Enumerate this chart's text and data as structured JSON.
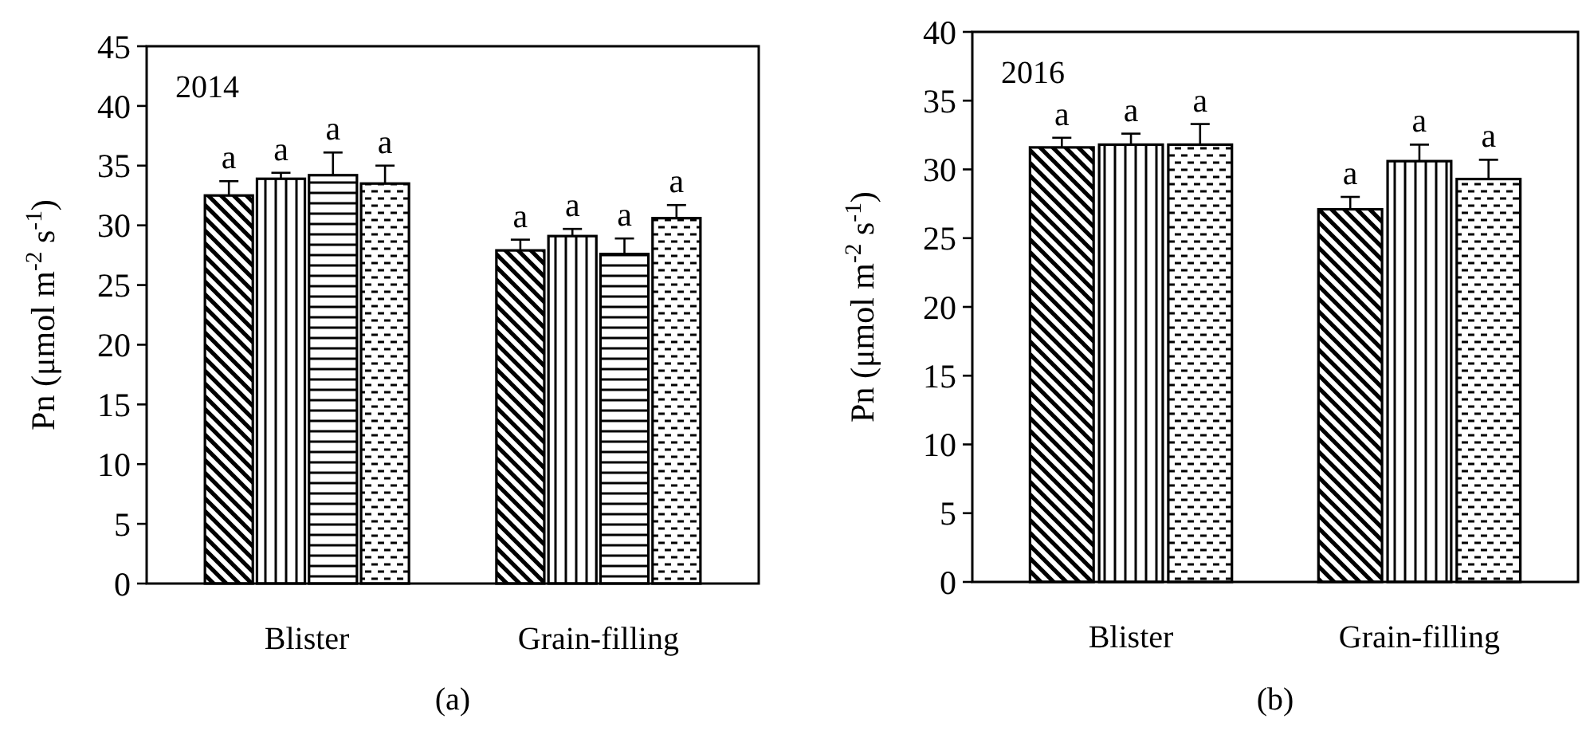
{
  "chart_data": [
    {
      "type": "bar",
      "categories": [
        "Blister",
        "Grain-filling"
      ],
      "ylabel": "Pn (μmol m$^{-2}$ s$^{-1}$)",
      "ylim": [
        0,
        45
      ],
      "yticks": [
        0,
        5,
        10,
        15,
        20,
        25,
        30,
        35,
        40,
        45
      ],
      "grid": false,
      "series": [
        {
          "color": "#000000",
          "values": [
            32.5,
            27.9
          ],
          "errors": [
            [
              32.5,
              33.7
            ],
            [
              27.9,
              28.8
            ]
          ]
        },
        {
          "color": "#000000",
          "values": [
            33.9,
            29.1
          ],
          "errors": [
            [
              33.9,
              34.4
            ],
            [
              29.1,
              29.7
            ]
          ]
        },
        {
          "color": "#000000",
          "values": [
            34.2,
            27.6
          ],
          "errors": [
            [
              34.2,
              36.1
            ],
            [
              27.6,
              28.9
            ]
          ]
        },
        {
          "color": "#000000",
          "values": [
            33.5,
            30.6
          ],
          "errors": [
            [
              33.5,
              35.0
            ],
            [
              30.6,
              31.7
            ]
          ]
        }
      ],
      "annotations": [
        "2014",
        "(a)",
        "a",
        "a",
        "a",
        "a",
        "a",
        "a",
        "a",
        "a"
      ]
    },
    {
      "type": "bar",
      "categories": [
        "Blister",
        "Grain-filling"
      ],
      "ylabel": "Pn (μmol m$^{-2}$ s$^{-1}$)",
      "ylim": [
        0,
        40
      ],
      "yticks": [
        0,
        5,
        10,
        15,
        20,
        25,
        30,
        35,
        40
      ],
      "grid": false,
      "series": [
        {
          "color": "#000000",
          "values": [
            31.6,
            27.1
          ],
          "errors": [
            [
              31.6,
              32.3
            ],
            [
              27.1,
              28.0
            ]
          ]
        },
        {
          "color": "#000000",
          "values": [
            31.8,
            30.6
          ],
          "errors": [
            [
              31.8,
              32.6
            ],
            [
              30.6,
              31.8
            ]
          ]
        },
        {
          "color": "#000000",
          "values": [
            31.8,
            29.3
          ],
          "errors": [
            [
              31.8,
              33.3
            ],
            [
              29.3,
              30.7
            ]
          ]
        }
      ],
      "annotations": [
        "2016",
        "(b)",
        "a",
        "a",
        "a",
        "a",
        "a",
        "a"
      ]
    }
  ]
}
